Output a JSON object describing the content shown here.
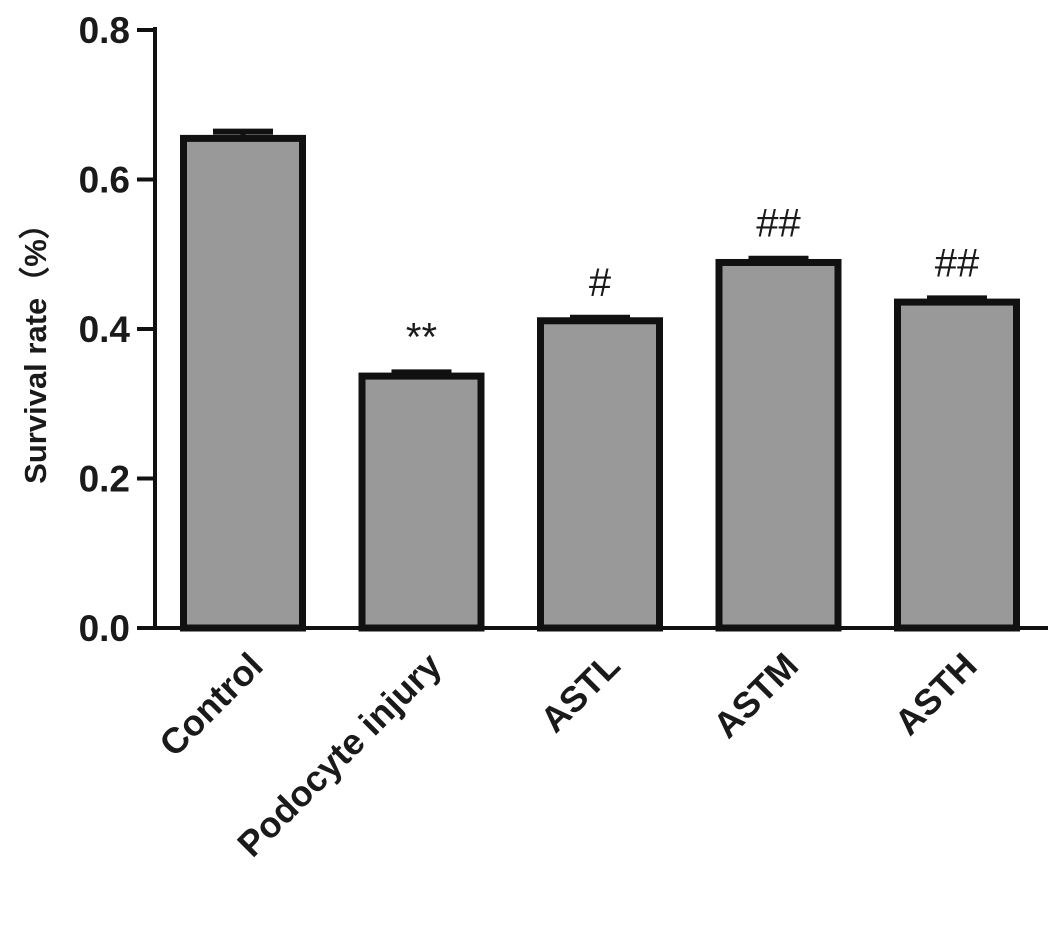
{
  "chart_data": {
    "type": "bar",
    "title": "",
    "xlabel": "",
    "ylabel": "Survival rate（%）",
    "categories": [
      "Control",
      "Podocyte injury",
      "ASTL",
      "ASTM",
      "ASTH"
    ],
    "values": [
      0.655,
      0.337,
      0.411,
      0.489,
      0.436
    ],
    "errors": [
      0.009,
      0.005,
      0.004,
      0.005,
      0.005
    ],
    "annotations": [
      "",
      "**",
      "#",
      "##",
      "##"
    ],
    "ylim": [
      0,
      0.8
    ],
    "yticks": [
      "0.0",
      "0.2",
      "0.4",
      "0.6",
      "0.8"
    ],
    "bar_color": "#999999",
    "edge_color": "#111111",
    "grid": false,
    "legend": "none"
  }
}
